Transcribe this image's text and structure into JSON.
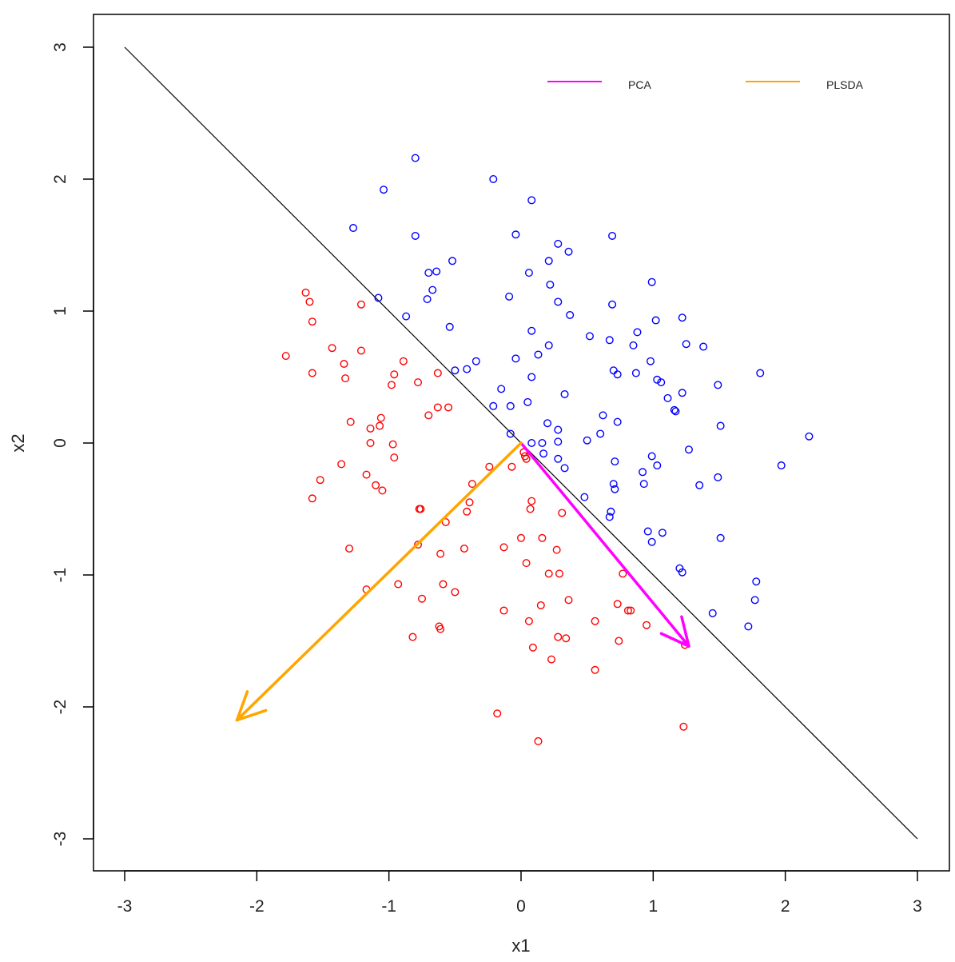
{
  "chart_data": {
    "type": "scatter",
    "title": "",
    "xlabel": "x1",
    "ylabel": "x2",
    "xlim": [
      -3.25,
      3.25
    ],
    "ylim": [
      -3.25,
      3.25
    ],
    "xticks": [
      -3,
      -2,
      -1,
      0,
      1,
      2,
      3
    ],
    "yticks": [
      -3,
      -2,
      -1,
      0,
      1,
      2,
      3
    ],
    "xtick_labels": [
      "-3",
      "-2",
      "-1",
      "0",
      "1",
      "2",
      "3"
    ],
    "ytick_labels": [
      "-3",
      "-2",
      "-1",
      "0",
      "1",
      "2",
      "3"
    ],
    "grid": false,
    "legend": {
      "placement": "top-right",
      "entries": [
        {
          "label": "PCA",
          "color": "#ff00ff"
        },
        {
          "label": "PLSDA",
          "color": "#ffa500"
        }
      ]
    },
    "series": [
      {
        "name": "class-blue",
        "color": "#0000ff",
        "points": [
          [
            -0.8,
            2.16
          ],
          [
            -0.21,
            2.0
          ],
          [
            -1.04,
            1.92
          ],
          [
            0.08,
            1.84
          ],
          [
            -1.27,
            1.63
          ],
          [
            -0.8,
            1.57
          ],
          [
            -0.04,
            1.58
          ],
          [
            0.69,
            1.57
          ],
          [
            0.28,
            1.51
          ],
          [
            0.36,
            1.45
          ],
          [
            0.21,
            1.38
          ],
          [
            -0.52,
            1.38
          ],
          [
            -0.7,
            1.29
          ],
          [
            -0.64,
            1.3
          ],
          [
            0.06,
            1.29
          ],
          [
            0.99,
            1.22
          ],
          [
            -0.67,
            1.16
          ],
          [
            0.22,
            1.2
          ],
          [
            -1.08,
            1.1
          ],
          [
            -0.09,
            1.11
          ],
          [
            -0.71,
            1.09
          ],
          [
            0.28,
            1.07
          ],
          [
            0.69,
            1.05
          ],
          [
            -0.87,
            0.96
          ],
          [
            0.37,
            0.97
          ],
          [
            1.22,
            0.95
          ],
          [
            1.02,
            0.93
          ],
          [
            -0.54,
            0.88
          ],
          [
            0.08,
            0.85
          ],
          [
            0.52,
            0.81
          ],
          [
            0.67,
            0.78
          ],
          [
            0.88,
            0.84
          ],
          [
            1.25,
            0.75
          ],
          [
            1.38,
            0.73
          ],
          [
            0.85,
            0.74
          ],
          [
            0.21,
            0.74
          ],
          [
            0.13,
            0.67
          ],
          [
            -0.34,
            0.62
          ],
          [
            -0.04,
            0.64
          ],
          [
            -0.41,
            0.56
          ],
          [
            -0.5,
            0.55
          ],
          [
            0.98,
            0.62
          ],
          [
            0.7,
            0.55
          ],
          [
            0.73,
            0.52
          ],
          [
            0.87,
            0.53
          ],
          [
            0.08,
            0.5
          ],
          [
            1.81,
            0.53
          ],
          [
            1.03,
            0.48
          ],
          [
            1.06,
            0.46
          ],
          [
            1.49,
            0.44
          ],
          [
            -0.15,
            0.41
          ],
          [
            1.22,
            0.38
          ],
          [
            0.33,
            0.37
          ],
          [
            1.11,
            0.34
          ],
          [
            0.05,
            0.31
          ],
          [
            -0.21,
            0.28
          ],
          [
            -0.08,
            0.28
          ],
          [
            1.16,
            0.25
          ],
          [
            1.17,
            0.24
          ],
          [
            0.62,
            0.21
          ],
          [
            0.2,
            0.15
          ],
          [
            0.73,
            0.16
          ],
          [
            1.51,
            0.13
          ],
          [
            0.28,
            0.1
          ],
          [
            -0.08,
            0.07
          ],
          [
            0.6,
            0.07
          ],
          [
            0.5,
            0.02
          ],
          [
            0.08,
            0.0
          ],
          [
            0.16,
            0.0
          ],
          [
            0.28,
            0.01
          ],
          [
            2.18,
            0.05
          ],
          [
            1.27,
            -0.05
          ],
          [
            0.17,
            -0.08
          ],
          [
            0.28,
            -0.12
          ],
          [
            0.99,
            -0.1
          ],
          [
            0.71,
            -0.14
          ],
          [
            1.03,
            -0.17
          ],
          [
            1.97,
            -0.17
          ],
          [
            0.33,
            -0.19
          ],
          [
            0.92,
            -0.22
          ],
          [
            1.49,
            -0.26
          ],
          [
            0.93,
            -0.31
          ],
          [
            0.7,
            -0.31
          ],
          [
            1.35,
            -0.32
          ],
          [
            0.71,
            -0.35
          ],
          [
            0.48,
            -0.41
          ],
          [
            0.68,
            -0.52
          ],
          [
            0.67,
            -0.56
          ],
          [
            1.51,
            -0.72
          ],
          [
            0.96,
            -0.67
          ],
          [
            1.07,
            -0.68
          ],
          [
            0.99,
            -0.75
          ],
          [
            1.2,
            -0.95
          ],
          [
            1.22,
            -0.98
          ],
          [
            1.78,
            -1.05
          ],
          [
            1.77,
            -1.19
          ],
          [
            1.45,
            -1.29
          ],
          [
            1.72,
            -1.39
          ]
        ]
      },
      {
        "name": "class-red",
        "color": "#ff0000",
        "points": [
          [
            -1.63,
            1.14
          ],
          [
            -1.6,
            1.07
          ],
          [
            -1.21,
            1.05
          ],
          [
            -1.58,
            0.92
          ],
          [
            -1.43,
            0.72
          ],
          [
            -1.78,
            0.66
          ],
          [
            -1.21,
            0.7
          ],
          [
            -0.89,
            0.62
          ],
          [
            -1.34,
            0.6
          ],
          [
            -1.58,
            0.53
          ],
          [
            -0.96,
            0.52
          ],
          [
            -0.63,
            0.53
          ],
          [
            -1.33,
            0.49
          ],
          [
            -0.78,
            0.46
          ],
          [
            -0.98,
            0.44
          ],
          [
            -0.63,
            0.27
          ],
          [
            -0.55,
            0.27
          ],
          [
            -0.7,
            0.21
          ],
          [
            -1.06,
            0.19
          ],
          [
            -1.29,
            0.16
          ],
          [
            -1.14,
            0.11
          ],
          [
            -1.07,
            0.13
          ],
          [
            -1.14,
            0.0
          ],
          [
            -0.97,
            -0.01
          ],
          [
            0.02,
            -0.07
          ],
          [
            0.03,
            -0.1
          ],
          [
            0.04,
            -0.12
          ],
          [
            -0.96,
            -0.11
          ],
          [
            -1.36,
            -0.16
          ],
          [
            -0.07,
            -0.18
          ],
          [
            -0.24,
            -0.18
          ],
          [
            -1.17,
            -0.24
          ],
          [
            -1.52,
            -0.28
          ],
          [
            -0.37,
            -0.31
          ],
          [
            -1.1,
            -0.32
          ],
          [
            -1.05,
            -0.36
          ],
          [
            -0.77,
            -0.5
          ],
          [
            -0.76,
            -0.5
          ],
          [
            -0.39,
            -0.45
          ],
          [
            0.08,
            -0.44
          ],
          [
            0.07,
            -0.5
          ],
          [
            0.31,
            -0.53
          ],
          [
            -1.58,
            -0.42
          ],
          [
            -0.57,
            -0.6
          ],
          [
            -0.41,
            -0.52
          ],
          [
            0.0,
            -0.72
          ],
          [
            0.16,
            -0.72
          ],
          [
            -0.13,
            -0.79
          ],
          [
            -0.78,
            -0.77
          ],
          [
            0.27,
            -0.81
          ],
          [
            -0.61,
            -0.84
          ],
          [
            -0.43,
            -0.8
          ],
          [
            0.04,
            -0.91
          ],
          [
            -1.3,
            -0.8
          ],
          [
            0.21,
            -0.99
          ],
          [
            0.29,
            -0.99
          ],
          [
            0.77,
            -0.99
          ],
          [
            -0.93,
            -1.07
          ],
          [
            -0.59,
            -1.07
          ],
          [
            -0.5,
            -1.13
          ],
          [
            -1.17,
            -1.11
          ],
          [
            -0.75,
            -1.18
          ],
          [
            0.36,
            -1.19
          ],
          [
            0.15,
            -1.23
          ],
          [
            -0.13,
            -1.27
          ],
          [
            0.73,
            -1.22
          ],
          [
            0.81,
            -1.27
          ],
          [
            0.83,
            -1.27
          ],
          [
            0.06,
            -1.35
          ],
          [
            0.56,
            -1.35
          ],
          [
            0.95,
            -1.38
          ],
          [
            -0.62,
            -1.39
          ],
          [
            -0.61,
            -1.41
          ],
          [
            0.28,
            -1.47
          ],
          [
            0.34,
            -1.48
          ],
          [
            -0.82,
            -1.47
          ],
          [
            0.74,
            -1.5
          ],
          [
            1.24,
            -1.53
          ],
          [
            0.09,
            -1.55
          ],
          [
            0.23,
            -1.64
          ],
          [
            0.56,
            -1.72
          ],
          [
            -0.18,
            -2.05
          ],
          [
            1.23,
            -2.15
          ],
          [
            0.13,
            -2.26
          ]
        ]
      }
    ],
    "lines": [
      {
        "name": "separator",
        "color": "#000000",
        "from": [
          -3,
          3
        ],
        "to": [
          3,
          -3
        ]
      }
    ],
    "arrows": [
      {
        "name": "PCA",
        "color": "#ff00ff",
        "from": [
          0,
          0
        ],
        "to": [
          1.27,
          -1.54
        ]
      },
      {
        "name": "PLSDA",
        "color": "#ffa500",
        "from": [
          0,
          0
        ],
        "to": [
          -2.15,
          -2.1
        ]
      }
    ]
  }
}
